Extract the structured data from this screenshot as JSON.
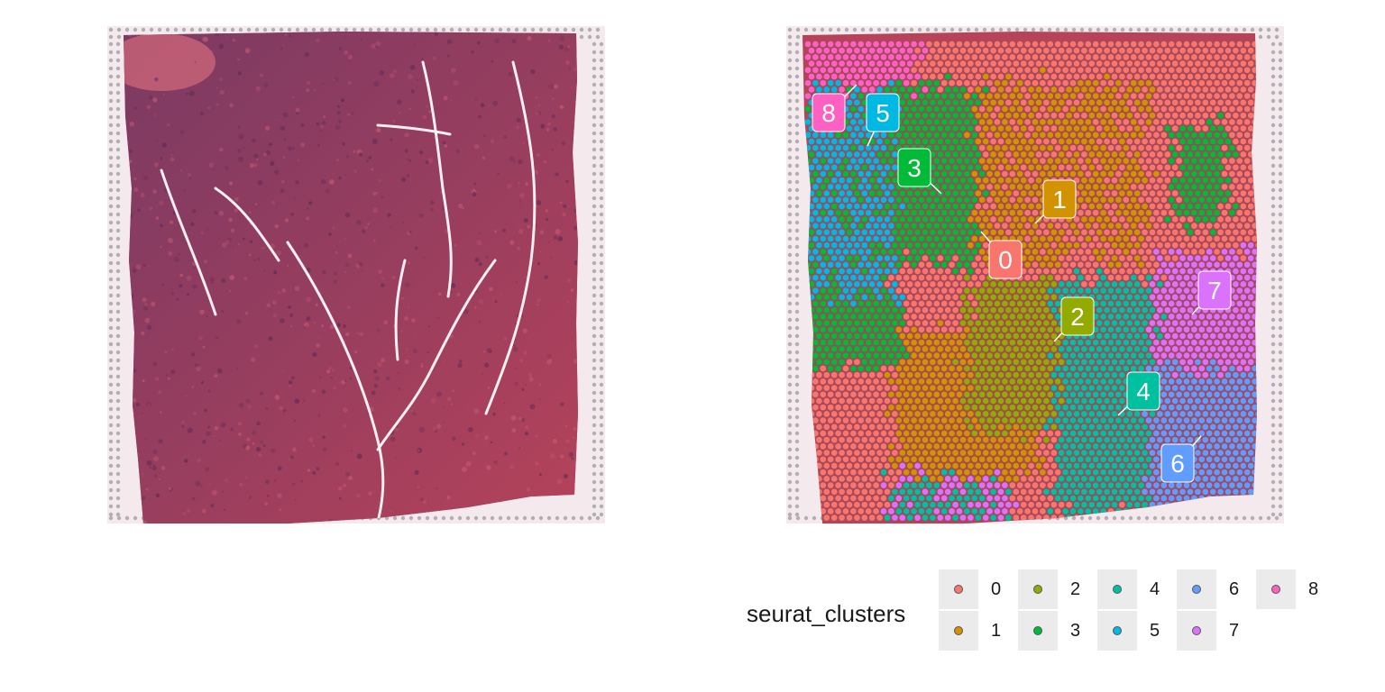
{
  "chart_data": [
    {
      "type": "image",
      "panel": "H&E tissue section (spatial image)",
      "colors": {
        "background": "#f4e9ec",
        "tissue_pink": "#b6435a",
        "tissue_purple": "#7a3a63",
        "fiducial": "#b0b0b4"
      }
    },
    {
      "type": "scatter",
      "legend_title": "seurat_clusters",
      "legend_position": "bottom",
      "clusters": [
        {
          "id": "0",
          "color": "#F8766D"
        },
        {
          "id": "1",
          "color": "#D39200"
        },
        {
          "id": "2",
          "color": "#93AA00"
        },
        {
          "id": "3",
          "color": "#00BA38"
        },
        {
          "id": "4",
          "color": "#00C19F"
        },
        {
          "id": "5",
          "color": "#00B9E3"
        },
        {
          "id": "6",
          "color": "#619CFF"
        },
        {
          "id": "7",
          "color": "#DB72FB"
        },
        {
          "id": "8",
          "color": "#FF61C3"
        }
      ],
      "cluster_labels": [
        "8",
        "5",
        "3",
        "1",
        "0",
        "7",
        "2",
        "4",
        "6"
      ]
    }
  ]
}
